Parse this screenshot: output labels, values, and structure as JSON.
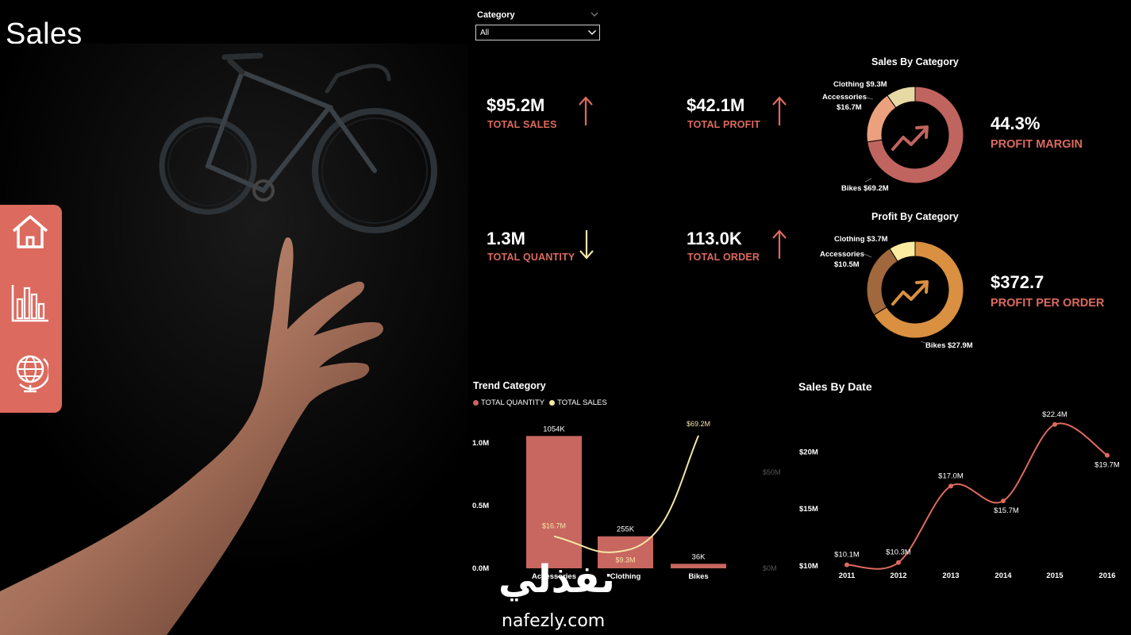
{
  "page": {
    "title": "Sales"
  },
  "nav": {
    "items": [
      {
        "icon": "home-icon"
      },
      {
        "icon": "bar-chart-icon"
      },
      {
        "icon": "globe-icon"
      }
    ]
  },
  "slicer": {
    "label": "Category",
    "value": "All"
  },
  "kpis": [
    {
      "value": "$95.2M",
      "label": "TOTAL SALES",
      "trend": "up"
    },
    {
      "value": "$42.1M",
      "label": "TOTAL PROFIT",
      "trend": "up"
    },
    {
      "value": "1.3M",
      "label": "TOTAL QUANTITY",
      "trend": "down"
    },
    {
      "value": "113.0K",
      "label": "TOTAL ORDER",
      "trend": "up"
    }
  ],
  "sales_by_category": {
    "title": "Sales By Category",
    "kpi_value": "44.3%",
    "kpi_label": "PROFIT MARGIN",
    "labels": {
      "clothing": "Clothing $9.3M",
      "accessories_1": "Accessories",
      "accessories_2": "$16.7M",
      "bikes": "Bikes $69.2M"
    }
  },
  "profit_by_category": {
    "title": "Profit By Category",
    "kpi_value": "$372.7",
    "kpi_label": "PROFIT PER ORDER",
    "labels": {
      "clothing": "Clothing $3.7M",
      "accessories_1": "Accessories",
      "accessories_2": "$10.5M",
      "bikes": "Bikes $27.9M"
    }
  },
  "trend_category": {
    "title": "Trend Category",
    "legend": [
      "TOTAL QUANTITY",
      "TOTAL SALES"
    ],
    "y_ticks": [
      "1.0M",
      "0.5M",
      "0.0M"
    ],
    "y2_ticks": [
      "$50M",
      "$0M"
    ],
    "categories": [
      "Accessories",
      "Clothing",
      "Bikes"
    ],
    "bar_labels": [
      "1054K",
      "255K",
      "36K"
    ],
    "line_labels": [
      "$16.7M",
      "$9.3M",
      "$69.2M"
    ]
  },
  "sales_by_date": {
    "title": "Sales By Date",
    "y_ticks": [
      "$20M",
      "$15M",
      "$10M"
    ],
    "years": [
      "2011",
      "2012",
      "2013",
      "2014",
      "2015",
      "2016"
    ],
    "labels": [
      "$10.1M",
      "$10.3M",
      "$17.0M",
      "$15.7M",
      "$22.4M",
      "$19.7M"
    ]
  },
  "watermark": {
    "arabic": "نفذلي",
    "latin": "nafezly.com"
  },
  "colors": {
    "accent": "#dc6a5e",
    "bar": "#c86660",
    "sales_line": "#f3e6a6",
    "profit_orange": "#d99040",
    "profit_brown": "#a0683c",
    "profit_cream": "#fbeba0",
    "sales_rose": "#c0645f",
    "sales_peach": "#eba07e",
    "sales_cream": "#e6d9a4"
  },
  "chart_data": [
    {
      "type": "pie",
      "title": "Sales By Category",
      "categories": [
        "Bikes",
        "Accessories",
        "Clothing"
      ],
      "values": [
        69.2,
        16.7,
        9.3
      ],
      "unit": "$M"
    },
    {
      "type": "pie",
      "title": "Profit By Category",
      "categories": [
        "Bikes",
        "Accessories",
        "Clothing"
      ],
      "values": [
        27.9,
        10.5,
        3.7
      ],
      "unit": "$M"
    },
    {
      "type": "bar",
      "title": "Trend Category",
      "categories": [
        "Accessories",
        "Clothing",
        "Bikes"
      ],
      "series": [
        {
          "name": "TOTAL QUANTITY",
          "values": [
            1054000,
            255000,
            36000
          ]
        },
        {
          "name": "TOTAL SALES",
          "values": [
            16.7,
            9.3,
            69.2
          ]
        }
      ],
      "ylim": [
        0,
        1100000
      ],
      "y2lim": [
        0,
        72
      ],
      "legend": "top-left"
    },
    {
      "type": "line",
      "title": "Sales By Date",
      "x": [
        2011,
        2012,
        2013,
        2014,
        2015,
        2016
      ],
      "values": [
        10.1,
        10.3,
        17.0,
        15.7,
        22.4,
        19.7
      ],
      "ylim": [
        10,
        22.8
      ]
    }
  ]
}
